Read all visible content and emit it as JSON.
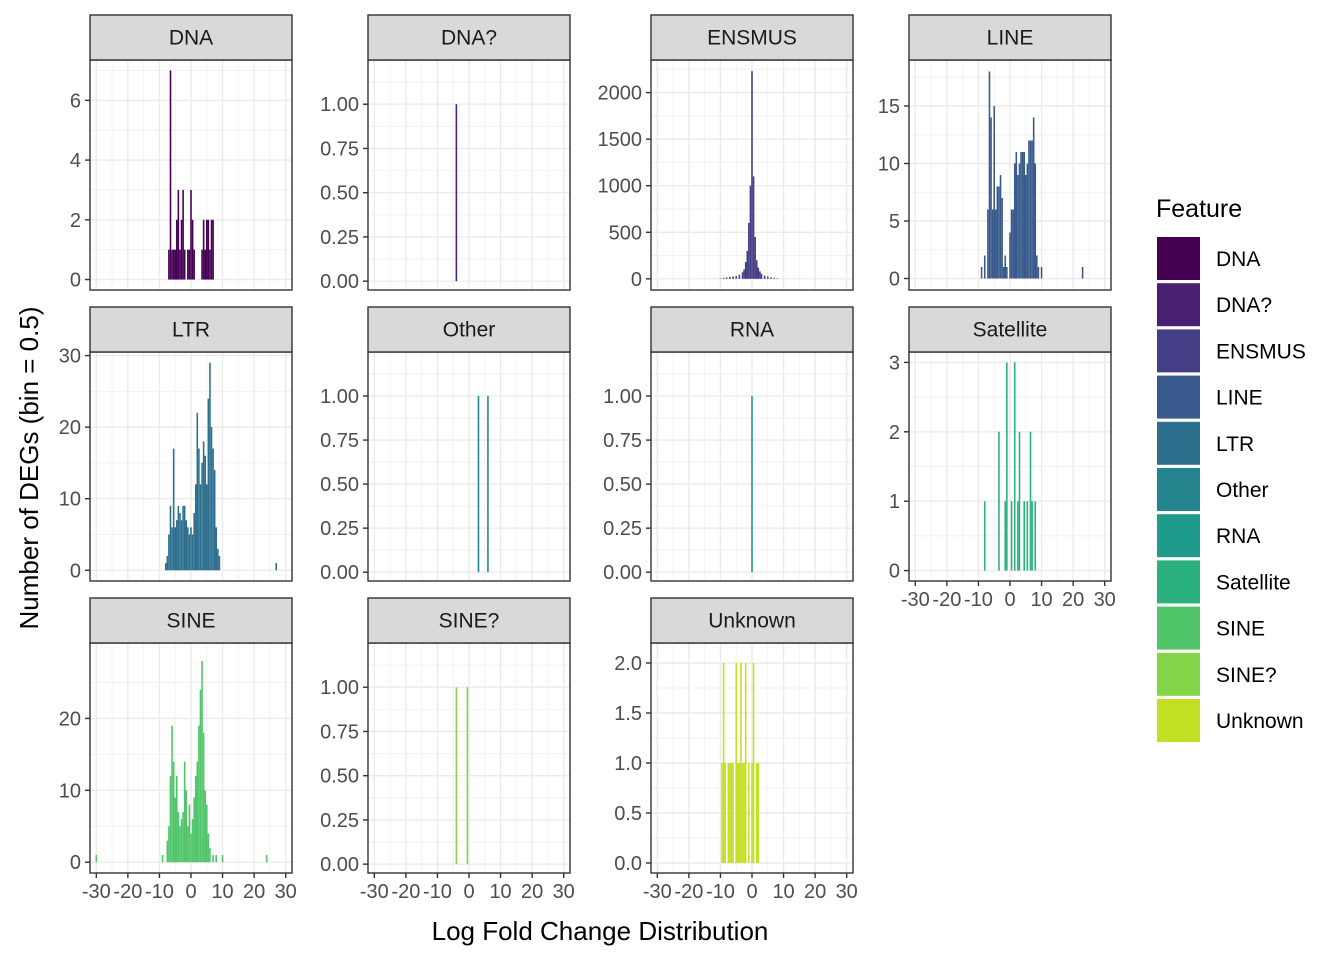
{
  "chart_data": {
    "type": "bar",
    "xlabel": "Log Fold Change Distribution",
    "ylabel": "Number of DEGs (bin = 0.5)",
    "xlim": [
      -32,
      32
    ],
    "x_ticks": [
      -30,
      -20,
      -10,
      0,
      10,
      20,
      30
    ],
    "x_tick_labels": [
      "-30",
      "-20",
      "-10",
      "0",
      "10",
      "20",
      "30"
    ],
    "grid": true,
    "facet_scales": "free_y",
    "legend": {
      "title": "Feature",
      "position": "right",
      "items": [
        {
          "label": "DNA",
          "color": "#440154"
        },
        {
          "label": "DNA?",
          "color": "#482173"
        },
        {
          "label": "ENSMUS",
          "color": "#433E85"
        },
        {
          "label": "LINE",
          "color": "#38598C"
        },
        {
          "label": "LTR",
          "color": "#2D708E"
        },
        {
          "label": "Other",
          "color": "#25858E"
        },
        {
          "label": "RNA",
          "color": "#1E9B8A"
        },
        {
          "label": "Satellite",
          "color": "#2BB07F"
        },
        {
          "label": "SINE",
          "color": "#51C56A"
        },
        {
          "label": "SINE?",
          "color": "#85D54A"
        },
        {
          "label": "Unknown",
          "color": "#C2DF23"
        }
      ]
    },
    "panels": [
      {
        "name": "DNA",
        "color": "#440154",
        "ylim": [
          -0.35,
          7.35
        ],
        "y_ticks": [
          0,
          2,
          4,
          6
        ],
        "y_tick_labels": [
          "0",
          "2",
          "4",
          "6"
        ],
        "bars": [
          [
            -7,
            1
          ],
          [
            -6.5,
            7
          ],
          [
            -6,
            1
          ],
          [
            -5.5,
            1
          ],
          [
            -5,
            1
          ],
          [
            -4.5,
            2
          ],
          [
            -4,
            3
          ],
          [
            -3.5,
            1
          ],
          [
            -3,
            2
          ],
          [
            -2.5,
            3
          ],
          [
            -2,
            1
          ],
          [
            -1,
            1
          ],
          [
            -0.5,
            1
          ],
          [
            0,
            3
          ],
          [
            0.5,
            2
          ],
          [
            1,
            1
          ],
          [
            3.5,
            1
          ],
          [
            4,
            2
          ],
          [
            4.5,
            1
          ],
          [
            5,
            2
          ],
          [
            5.5,
            2
          ],
          [
            6,
            1
          ],
          [
            6.5,
            2
          ],
          [
            7,
            2
          ]
        ]
      },
      {
        "name": "DNA?",
        "color": "#482173",
        "ylim": [
          -0.05,
          1.25
        ],
        "y_ticks": [
          0,
          0.25,
          0.5,
          0.75,
          1
        ],
        "y_tick_labels": [
          "0.00",
          "0.25",
          "0.50",
          "0.75",
          "1.00"
        ],
        "bars": [
          [
            -4,
            1
          ]
        ]
      },
      {
        "name": "ENSMUS",
        "color": "#433E85",
        "ylim": [
          -120,
          2350
        ],
        "y_ticks": [
          0,
          500,
          1000,
          1500,
          2000
        ],
        "y_tick_labels": [
          "0",
          "500",
          "1000",
          "1500",
          "2000"
        ],
        "bars": [
          [
            -10,
            5
          ],
          [
            -9,
            10
          ],
          [
            -8,
            15
          ],
          [
            -7,
            20
          ],
          [
            -6,
            25
          ],
          [
            -5,
            30
          ],
          [
            -4,
            45
          ],
          [
            -3,
            70
          ],
          [
            -2.5,
            100
          ],
          [
            -2,
            180
          ],
          [
            -1.5,
            300
          ],
          [
            -1,
            600
          ],
          [
            -0.5,
            1000
          ],
          [
            0,
            2230
          ],
          [
            0.5,
            1100
          ],
          [
            1,
            450
          ],
          [
            1.5,
            200
          ],
          [
            2,
            120
          ],
          [
            2.5,
            80
          ],
          [
            3,
            55
          ],
          [
            4,
            35
          ],
          [
            5,
            25
          ],
          [
            6,
            15
          ],
          [
            7,
            10
          ],
          [
            8,
            5
          ]
        ]
      },
      {
        "name": "LINE",
        "color": "#38598C",
        "ylim": [
          -1,
          19
        ],
        "y_ticks": [
          0,
          5,
          10,
          15
        ],
        "y_tick_labels": [
          "0",
          "5",
          "10",
          "15"
        ],
        "bars": [
          [
            -9,
            1
          ],
          [
            -8,
            2
          ],
          [
            -7,
            6
          ],
          [
            -6.5,
            18
          ],
          [
            -6,
            14
          ],
          [
            -5.5,
            6
          ],
          [
            -5,
            15
          ],
          [
            -4.5,
            6
          ],
          [
            -4,
            8
          ],
          [
            -3.5,
            8
          ],
          [
            -3,
            9
          ],
          [
            -2.5,
            7
          ],
          [
            -2,
            1
          ],
          [
            -1.5,
            2
          ],
          [
            -1,
            1
          ],
          [
            0,
            4
          ],
          [
            0.5,
            6
          ],
          [
            1,
            6
          ],
          [
            1.5,
            10
          ],
          [
            2,
            11
          ],
          [
            2.5,
            9
          ],
          [
            3,
            10
          ],
          [
            3.5,
            11
          ],
          [
            4,
            11
          ],
          [
            4.5,
            11
          ],
          [
            5,
            9
          ],
          [
            5.5,
            10
          ],
          [
            6,
            12
          ],
          [
            6.5,
            12
          ],
          [
            7,
            12
          ],
          [
            7.5,
            14
          ],
          [
            8,
            10
          ],
          [
            8.5,
            2
          ],
          [
            9,
            1
          ],
          [
            10,
            1
          ],
          [
            23,
            1
          ]
        ]
      },
      {
        "name": "LTR",
        "color": "#2D708E",
        "ylim": [
          -1.5,
          30.5
        ],
        "y_ticks": [
          0,
          10,
          20,
          30
        ],
        "y_tick_labels": [
          "0",
          "10",
          "20",
          "30"
        ],
        "bars": [
          [
            -8,
            1
          ],
          [
            -7.5,
            2
          ],
          [
            -7,
            5
          ],
          [
            -6.5,
            9
          ],
          [
            -6,
            6
          ],
          [
            -5.5,
            17
          ],
          [
            -5,
            6
          ],
          [
            -4.5,
            7
          ],
          [
            -4,
            9
          ],
          [
            -3.5,
            8
          ],
          [
            -3,
            7
          ],
          [
            -2.5,
            9
          ],
          [
            -2,
            9
          ],
          [
            -1.5,
            7
          ],
          [
            -1,
            6
          ],
          [
            -0.5,
            5
          ],
          [
            0,
            6
          ],
          [
            0.5,
            5
          ],
          [
            1,
            8
          ],
          [
            1.5,
            12
          ],
          [
            2,
            22
          ],
          [
            2.5,
            17
          ],
          [
            3,
            12
          ],
          [
            3.5,
            15
          ],
          [
            4,
            18
          ],
          [
            4.5,
            16
          ],
          [
            5,
            12
          ],
          [
            5.5,
            24
          ],
          [
            6,
            29
          ],
          [
            6.5,
            20
          ],
          [
            7,
            17
          ],
          [
            7.5,
            14
          ],
          [
            8,
            6
          ],
          [
            8.5,
            3
          ],
          [
            9,
            2
          ],
          [
            27,
            1
          ]
        ]
      },
      {
        "name": "Other",
        "color": "#25858E",
        "ylim": [
          -0.05,
          1.25
        ],
        "y_ticks": [
          0,
          0.25,
          0.5,
          0.75,
          1
        ],
        "y_tick_labels": [
          "0.00",
          "0.25",
          "0.50",
          "0.75",
          "1.00"
        ],
        "bars": [
          [
            3,
            1
          ],
          [
            6,
            1
          ]
        ]
      },
      {
        "name": "RNA",
        "color": "#1E9B8A",
        "ylim": [
          -0.05,
          1.25
        ],
        "y_ticks": [
          0,
          0.25,
          0.5,
          0.75,
          1
        ],
        "y_tick_labels": [
          "0.00",
          "0.25",
          "0.50",
          "0.75",
          "1.00"
        ],
        "bars": [
          [
            0,
            1
          ]
        ]
      },
      {
        "name": "Satellite",
        "color": "#2BB07F",
        "ylim": [
          -0.15,
          3.15
        ],
        "y_ticks": [
          0,
          1,
          2,
          3
        ],
        "y_tick_labels": [
          "0",
          "1",
          "2",
          "3"
        ],
        "bars": [
          [
            -8,
            1
          ],
          [
            -3.5,
            2
          ],
          [
            -1.5,
            1
          ],
          [
            -1,
            3
          ],
          [
            0.5,
            1
          ],
          [
            1.5,
            3
          ],
          [
            2.5,
            1
          ],
          [
            3,
            2
          ],
          [
            4.5,
            1
          ],
          [
            5.5,
            1
          ],
          [
            6.5,
            2
          ],
          [
            7,
            1
          ],
          [
            8,
            1
          ]
        ]
      },
      {
        "name": "SINE",
        "color": "#51C56A",
        "ylim": [
          -1.5,
          30.5
        ],
        "y_ticks": [
          0,
          10,
          20
        ],
        "y_tick_labels": [
          "0",
          "10",
          "20"
        ],
        "bars": [
          [
            -30,
            1
          ],
          [
            -9,
            1
          ],
          [
            -7.5,
            3
          ],
          [
            -7,
            5
          ],
          [
            -6.5,
            12
          ],
          [
            -6,
            19
          ],
          [
            -5.5,
            14
          ],
          [
            -5,
            9
          ],
          [
            -4.5,
            12
          ],
          [
            -4,
            7
          ],
          [
            -3.5,
            5
          ],
          [
            -3,
            6
          ],
          [
            -2.5,
            7
          ],
          [
            -2,
            14
          ],
          [
            -1.5,
            10
          ],
          [
            -1,
            5
          ],
          [
            -0.5,
            8
          ],
          [
            0,
            4
          ],
          [
            0.5,
            6
          ],
          [
            1,
            9
          ],
          [
            1.5,
            12
          ],
          [
            2,
            14
          ],
          [
            2.5,
            19
          ],
          [
            3,
            24
          ],
          [
            3.5,
            28
          ],
          [
            4,
            18
          ],
          [
            4.5,
            10
          ],
          [
            5,
            8
          ],
          [
            5.5,
            4
          ],
          [
            6,
            2
          ],
          [
            7,
            1
          ],
          [
            8,
            1
          ],
          [
            10,
            1
          ],
          [
            24,
            1
          ]
        ]
      },
      {
        "name": "SINE?",
        "color": "#85D54A",
        "ylim": [
          -0.05,
          1.25
        ],
        "y_ticks": [
          0,
          0.25,
          0.5,
          0.75,
          1
        ],
        "y_tick_labels": [
          "0.00",
          "0.25",
          "0.50",
          "0.75",
          "1.00"
        ],
        "bars": [
          [
            -4,
            1
          ],
          [
            -0.5,
            1
          ]
        ]
      },
      {
        "name": "Unknown",
        "color": "#C2DF23",
        "ylim": [
          -0.1,
          2.2
        ],
        "y_ticks": [
          0,
          0.5,
          1,
          1.5,
          2
        ],
        "y_tick_labels": [
          "0.0",
          "0.5",
          "1.0",
          "1.5",
          "2.0"
        ],
        "bars": [
          [
            -9.5,
            1
          ],
          [
            -9,
            2
          ],
          [
            -8.5,
            1
          ],
          [
            -7.5,
            1
          ],
          [
            -7,
            1
          ],
          [
            -6.5,
            1
          ],
          [
            -6,
            1
          ],
          [
            -5,
            2
          ],
          [
            -4.5,
            1
          ],
          [
            -4,
            1
          ],
          [
            -3.5,
            2
          ],
          [
            -3,
            1
          ],
          [
            -2.5,
            1
          ],
          [
            -2,
            2
          ],
          [
            -1,
            1
          ],
          [
            0,
            1
          ],
          [
            0.5,
            2
          ],
          [
            1.5,
            1
          ],
          [
            2,
            1
          ]
        ]
      }
    ]
  }
}
